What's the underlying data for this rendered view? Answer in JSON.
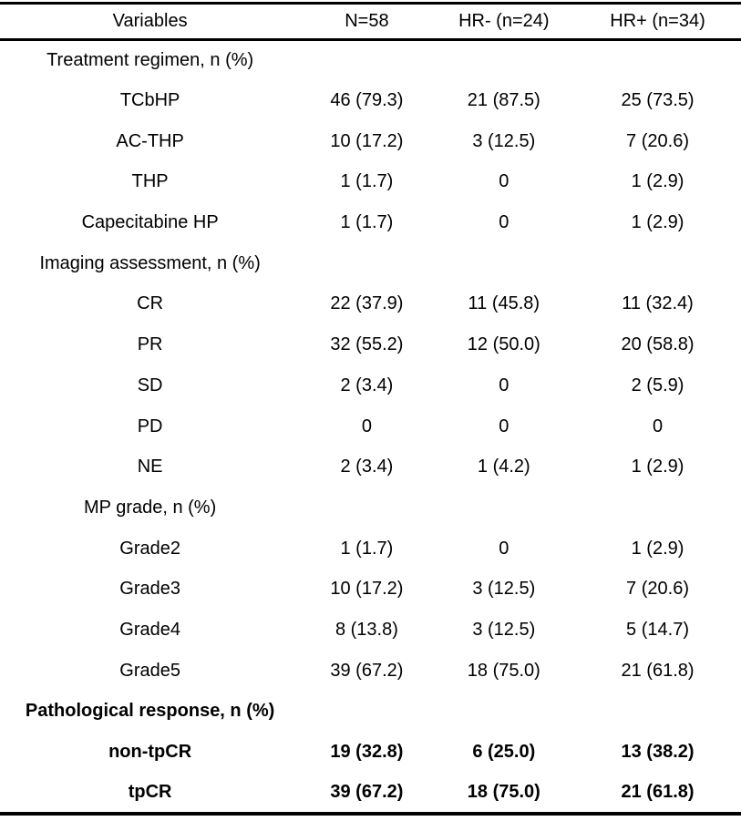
{
  "table": {
    "columns": [
      "Variables",
      "N=58",
      "HR- (n=24)",
      "HR+ (n=34)"
    ],
    "rows": [
      {
        "label": "Treatment regimen, n (%)",
        "type": "section",
        "bold": false,
        "values": [
          "",
          "",
          ""
        ]
      },
      {
        "label": "TCbHP",
        "type": "item",
        "bold": false,
        "values": [
          "46 (79.3)",
          "21 (87.5)",
          "25 (73.5)"
        ]
      },
      {
        "label": "AC-THP",
        "type": "item",
        "bold": false,
        "values": [
          "10 (17.2)",
          "3 (12.5)",
          "7 (20.6)"
        ]
      },
      {
        "label": "THP",
        "type": "item",
        "bold": false,
        "values": [
          "1 (1.7)",
          "0",
          "1 (2.9)"
        ]
      },
      {
        "label": "Capecitabine HP",
        "type": "item",
        "bold": false,
        "values": [
          "1 (1.7)",
          "0",
          "1 (2.9)"
        ]
      },
      {
        "label": "Imaging assessment, n (%)",
        "type": "section",
        "bold": false,
        "values": [
          "",
          "",
          ""
        ]
      },
      {
        "label": "CR",
        "type": "item",
        "bold": false,
        "values": [
          "22 (37.9)",
          "11 (45.8)",
          "11 (32.4)"
        ]
      },
      {
        "label": "PR",
        "type": "item",
        "bold": false,
        "values": [
          "32 (55.2)",
          "12 (50.0)",
          "20 (58.8)"
        ]
      },
      {
        "label": "SD",
        "type": "item",
        "bold": false,
        "values": [
          "2 (3.4)",
          "0",
          "2 (5.9)"
        ]
      },
      {
        "label": "PD",
        "type": "item",
        "bold": false,
        "values": [
          "0",
          "0",
          "0"
        ]
      },
      {
        "label": "NE",
        "type": "item",
        "bold": false,
        "values": [
          "2 (3.4)",
          "1 (4.2)",
          "1 (2.9)"
        ]
      },
      {
        "label": "MP grade, n (%)",
        "type": "section",
        "bold": false,
        "values": [
          "",
          "",
          ""
        ]
      },
      {
        "label": "Grade2",
        "type": "item",
        "bold": false,
        "values": [
          "1 (1.7)",
          "0",
          "1 (2.9)"
        ]
      },
      {
        "label": "Grade3",
        "type": "item",
        "bold": false,
        "values": [
          "10 (17.2)",
          "3 (12.5)",
          "7 (20.6)"
        ]
      },
      {
        "label": "Grade4",
        "type": "item",
        "bold": false,
        "values": [
          "8 (13.8)",
          "3 (12.5)",
          "5 (14.7)"
        ]
      },
      {
        "label": "Grade5",
        "type": "item",
        "bold": false,
        "values": [
          "39 (67.2)",
          "18 (75.0)",
          "21 (61.8)"
        ]
      },
      {
        "label": "Pathological response, n (%)",
        "type": "section",
        "bold": true,
        "values": [
          "",
          "",
          ""
        ]
      },
      {
        "label": "non-tpCR",
        "type": "item",
        "bold": true,
        "values": [
          "19 (32.8)",
          "6 (25.0)",
          "13 (38.2)"
        ]
      },
      {
        "label": "tpCR",
        "type": "item",
        "bold": true,
        "values": [
          "39 (67.2)",
          "18 (75.0)",
          "21 (61.8)"
        ]
      }
    ]
  },
  "colors": {
    "text": "#000000",
    "background": "#ffffff",
    "rule": "#000000"
  }
}
